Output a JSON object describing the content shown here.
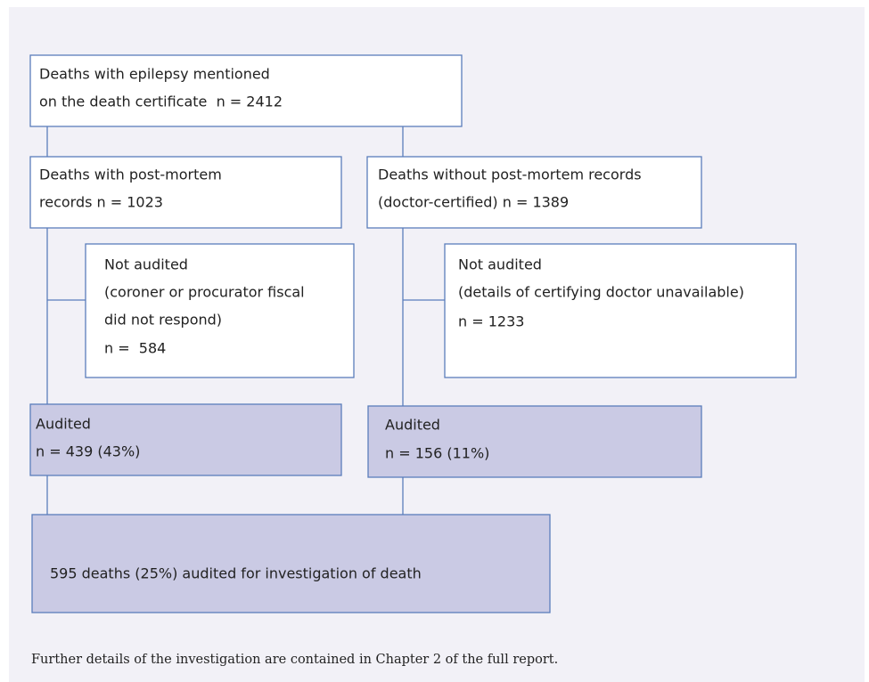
{
  "nodes": [
    {
      "lines": [
        "Deaths with epilepsy mentioned",
        "on the death certificate  n = 2412"
      ]
    },
    {
      "lines": [
        "Deaths with post-mortem",
        "records n = 1023"
      ]
    },
    {
      "lines": [
        "Deaths without post-mortem records",
        "(doctor-certified) n = 1389"
      ]
    },
    {
      "lines": [
        "Not audited",
        "(coroner or procurator fiscal",
        "did not respond)",
        "n =  584"
      ]
    },
    {
      "lines": [
        "Not audited",
        "(details of certifying doctor unavailable)",
        "n = 1233"
      ]
    },
    {
      "lines": [
        "Audited",
        "n = 439 (43%)"
      ]
    },
    {
      "lines": [
        "Audited",
        "n = 156 (11%)"
      ]
    },
    {
      "lines": [
        "595 deaths (25%) audited for investigation of death"
      ]
    }
  ],
  "footer": "Further details of the investigation are contained in Chapter 2 of the full report."
}
